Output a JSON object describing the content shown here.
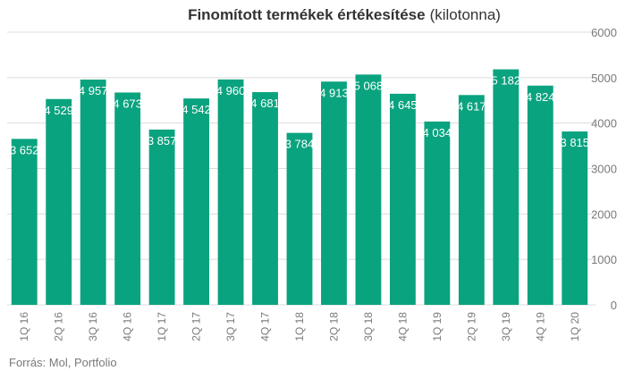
{
  "chart_data": {
    "type": "bar",
    "title": "Finomított termékek értékesítése",
    "title_unit": "(kilotonna)",
    "categories": [
      "1Q 16",
      "2Q 16",
      "3Q 16",
      "4Q 16",
      "1Q 17",
      "2Q 17",
      "3Q 17",
      "4Q 17",
      "1Q 18",
      "2Q 18",
      "3Q 18",
      "4Q 18",
      "1Q 19",
      "2Q 19",
      "3Q 19",
      "4Q 19",
      "1Q 20"
    ],
    "values": [
      3652,
      4529,
      4957,
      4673,
      3857,
      4542,
      4960,
      4681,
      3784,
      4913,
      5068,
      4645,
      4034,
      4617,
      5182,
      4824,
      3815
    ],
    "value_labels": [
      "3 652",
      "4 529",
      "4 957",
      "4 673",
      "3 857",
      "4 542",
      "4 960",
      "4 681",
      "3 784",
      "4 913",
      "5 068",
      "4 645",
      "4 034",
      "4 617",
      "5 182",
      "4 824",
      "3 815"
    ],
    "yticks": [
      0,
      1000,
      2000,
      3000,
      4000,
      5000,
      6000
    ],
    "ylim": [
      0,
      6000
    ],
    "grid": true,
    "y_axis_side": "right",
    "bar_color": "#0aa37f",
    "grid_color": "#dcdcdc",
    "source": "Forrás: Mol, Portfolio"
  }
}
